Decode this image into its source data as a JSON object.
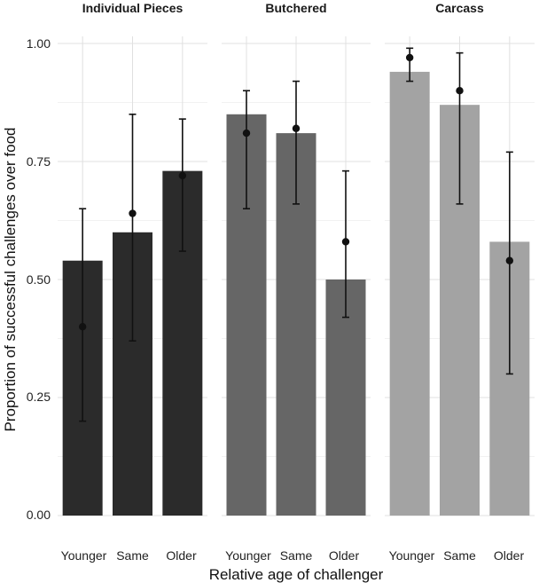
{
  "chart_data": {
    "type": "bar",
    "facets": [
      "Individual Pieces",
      "Butchered",
      "Carcass"
    ],
    "categories": [
      "Younger",
      "Same",
      "Older"
    ],
    "xlabel": "Relative age of challenger",
    "ylabel": "Proportion of successful challenges over food",
    "ylim": [
      0,
      1.0
    ],
    "yticks": [
      0.0,
      0.25,
      0.5,
      0.75,
      1.0
    ],
    "ytick_labels": [
      "0.00",
      "0.25",
      "0.50",
      "0.75",
      "1.00"
    ],
    "grid": true,
    "colors": [
      "#2b2b2b",
      "#666666",
      "#a3a3a3"
    ],
    "series": [
      {
        "name": "Individual Pieces",
        "bar_values": [
          0.54,
          0.6,
          0.73
        ],
        "point_estimates": [
          0.4,
          0.64,
          0.72
        ],
        "ci_lower": [
          0.2,
          0.37,
          0.56
        ],
        "ci_upper": [
          0.65,
          0.85,
          0.84
        ]
      },
      {
        "name": "Butchered",
        "bar_values": [
          0.85,
          0.81,
          0.5
        ],
        "point_estimates": [
          0.81,
          0.82,
          0.58
        ],
        "ci_lower": [
          0.65,
          0.66,
          0.42
        ],
        "ci_upper": [
          0.9,
          0.92,
          0.73
        ]
      },
      {
        "name": "Carcass",
        "bar_values": [
          0.94,
          0.87,
          0.58
        ],
        "point_estimates": [
          0.97,
          0.9,
          0.54
        ],
        "ci_lower": [
          0.92,
          0.66,
          0.3
        ],
        "ci_upper": [
          0.99,
          0.98,
          0.77
        ]
      }
    ]
  }
}
